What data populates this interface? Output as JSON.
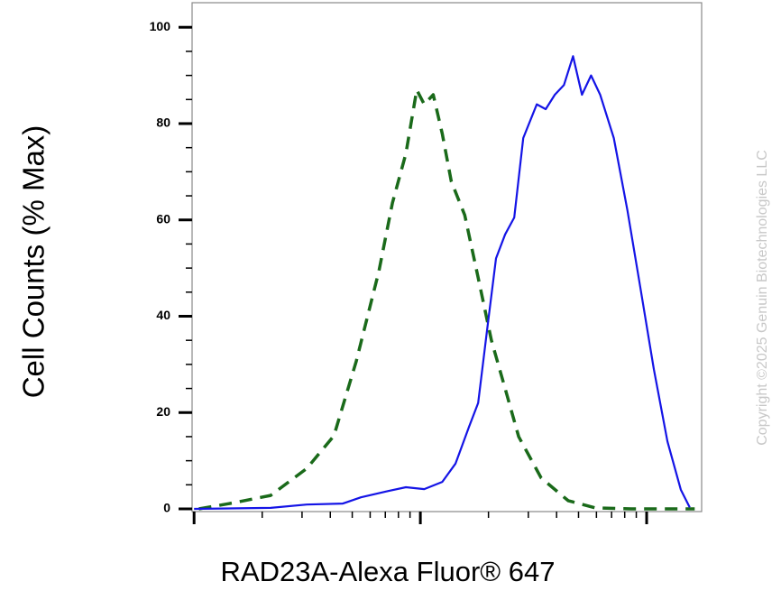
{
  "chart_data": {
    "type": "line",
    "y_label": "Cell Counts (% Max)",
    "x_label": "RAD23A-Alexa Fluor® 647",
    "watermark": "Copyright ©2025 Genuin Biotechnologies LLC",
    "x_log": true,
    "xlim": [
      0.98,
      175
    ],
    "xticks": [
      1,
      10,
      100
    ],
    "ylim": [
      -0.56,
      105.1
    ],
    "yticks": [
      0,
      20,
      40,
      60,
      80,
      100
    ],
    "series": [
      {
        "color": "#1a6a1a",
        "dashed": true,
        "x": [
          1.05,
          1.51,
          2.18,
          3.15,
          4.15,
          5.21,
          6.56,
          7.52,
          8.63,
          9.64,
          10.4,
          11.4,
          12.5,
          13.7,
          15.7,
          18.0,
          20.6,
          23.7,
          27.2,
          34.2,
          45.0,
          59.3,
          85.5,
          163
        ],
        "values": [
          0,
          1.3,
          2.8,
          8.4,
          15.2,
          30.7,
          49.4,
          63.5,
          73.8,
          87,
          84,
          86,
          77.9,
          68,
          61,
          48,
          35,
          25,
          15,
          6.4,
          1.7,
          0.2,
          0,
          0
        ]
      },
      {
        "color": "#1414e6",
        "dashed": false,
        "x": [
          1.0,
          2.18,
          3.15,
          4.54,
          5.46,
          7.18,
          8.63,
          10.4,
          12.5,
          14.3,
          16.4,
          18.0,
          19.7,
          21.6,
          23.7,
          26.0,
          28.5,
          32.7,
          35.8,
          39.3,
          43.1,
          47.3,
          51.8,
          56.8,
          62.3,
          71.6,
          82.2,
          93.8,
          107.6,
          123.6,
          141.6,
          155
        ],
        "values": [
          0,
          0.2,
          0.9,
          1.1,
          2.4,
          3.7,
          4.5,
          4.1,
          5.6,
          9.4,
          17,
          22,
          37,
          52,
          57,
          60.5,
          77,
          84,
          83,
          86,
          88,
          94,
          86,
          90,
          86,
          77,
          62,
          46,
          29,
          14,
          4,
          0.3
        ]
      }
    ]
  }
}
